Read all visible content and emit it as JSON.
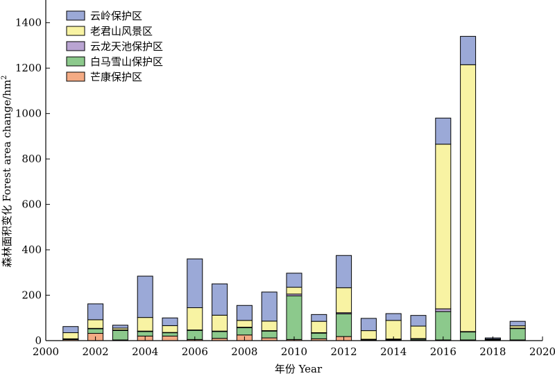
{
  "chart_data": {
    "type": "bar",
    "stacked": true,
    "title": "",
    "xlabel": "年份 Year",
    "ylabel": "森林面积变化 Forest area change/hm²",
    "xlim": [
      2000,
      2020
    ],
    "ylim": [
      0,
      1500
    ],
    "xticks": [
      2000,
      2002,
      2004,
      2006,
      2008,
      2010,
      2012,
      2014,
      2016,
      2018,
      2020
    ],
    "yticks": [
      0,
      200,
      400,
      600,
      800,
      1000,
      1200,
      1400
    ],
    "grid": false,
    "legend_position": "top-left",
    "x": [
      2001,
      2002,
      2003,
      2004,
      2005,
      2006,
      2007,
      2008,
      2009,
      2010,
      2011,
      2012,
      2013,
      2014,
      2015,
      2016,
      2017,
      2018,
      2019
    ],
    "series": [
      {
        "name": "芒康保护区",
        "color": "#f4ab84",
        "values": [
          5,
          32,
          3,
          20,
          20,
          5,
          10,
          25,
          12,
          5,
          8,
          18,
          3,
          3,
          3,
          3,
          3,
          3,
          3
        ]
      },
      {
        "name": "白马雪山保护区",
        "color": "#8cc98c",
        "values": [
          2,
          20,
          42,
          20,
          15,
          40,
          30,
          32,
          30,
          192,
          25,
          100,
          2,
          3,
          5,
          125,
          35,
          2,
          50
        ]
      },
      {
        "name": "云龙天池保护区",
        "color": "#b9a4d2",
        "values": [
          1,
          2,
          2,
          2,
          1,
          2,
          2,
          2,
          2,
          8,
          2,
          5,
          1,
          1,
          1,
          12,
          2,
          2,
          2
        ]
      },
      {
        "name": "老君山风景区",
        "color": "#f8f3a3",
        "values": [
          27,
          38,
          8,
          60,
          30,
          98,
          70,
          30,
          42,
          30,
          50,
          110,
          38,
          82,
          55,
          725,
          1175,
          0,
          10
        ]
      },
      {
        "name": "云岭保护区",
        "color": "#9ba9d7",
        "values": [
          27,
          70,
          13,
          182,
          34,
          215,
          138,
          66,
          128,
          62,
          30,
          142,
          54,
          30,
          47,
          115,
          125,
          5,
          20
        ]
      }
    ]
  }
}
